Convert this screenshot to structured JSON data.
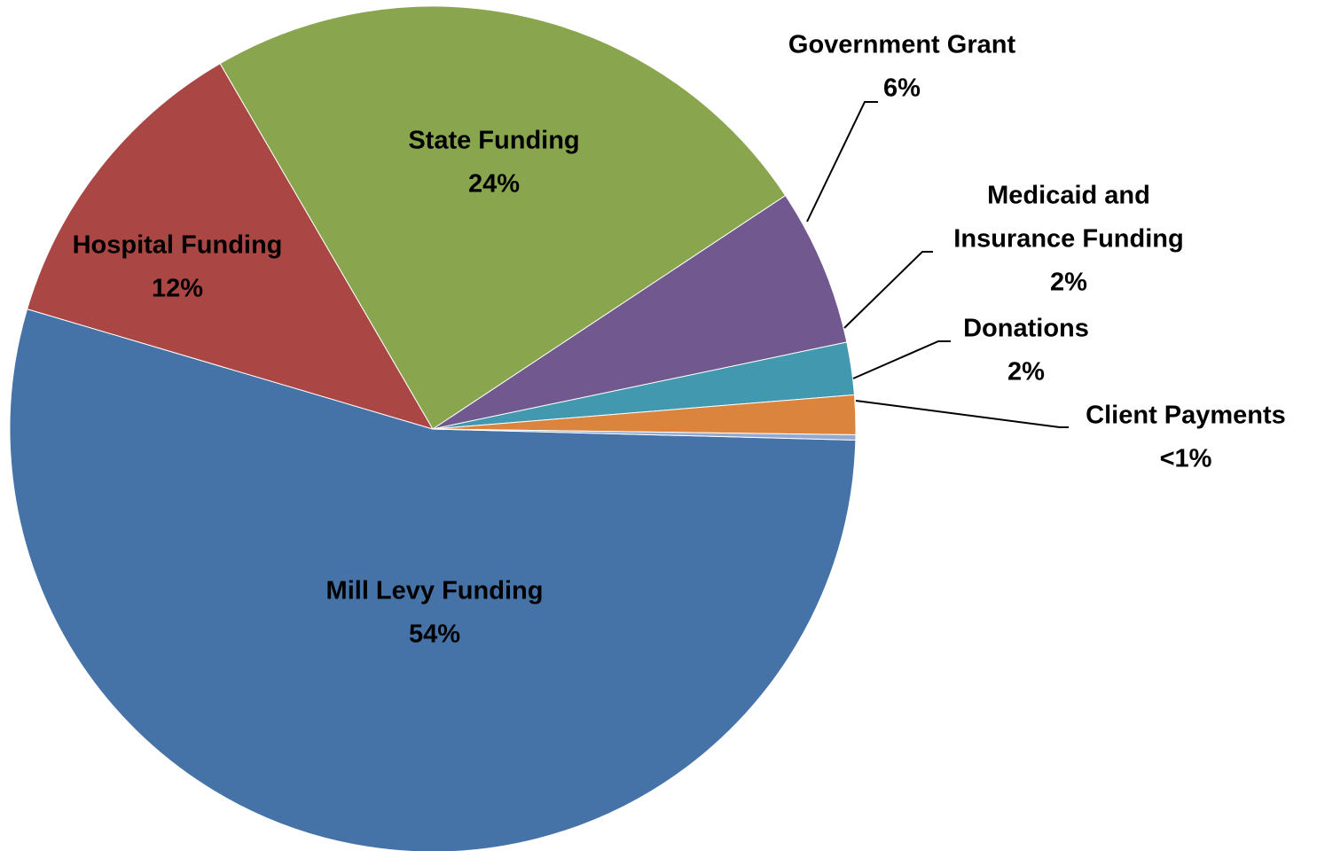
{
  "chart_data": {
    "type": "pie",
    "title": "",
    "slices": [
      {
        "name": "Mill Levy Funding",
        "value": 54,
        "label": "54%",
        "color": "#4572A7"
      },
      {
        "name": "Hospital Funding",
        "value": 12,
        "label": "12%",
        "color": "#AA4643"
      },
      {
        "name": "State Funding",
        "value": 24,
        "label": "24%",
        "color": "#89A54E"
      },
      {
        "name": "Government Grant",
        "value": 6,
        "label": "6%",
        "color": "#71588F"
      },
      {
        "name": "Medicaid and Insurance Funding",
        "value": 2,
        "label": "2%",
        "color": "#4198AF"
      },
      {
        "name": "Donations",
        "value": 1.5,
        "label": "2%",
        "color": "#DB843D"
      },
      {
        "name": "Client Payments",
        "value": 0.2,
        "label": "<1%",
        "color": "#93A9CF"
      }
    ],
    "legend": "none",
    "data_labels": "category name and percentage"
  }
}
